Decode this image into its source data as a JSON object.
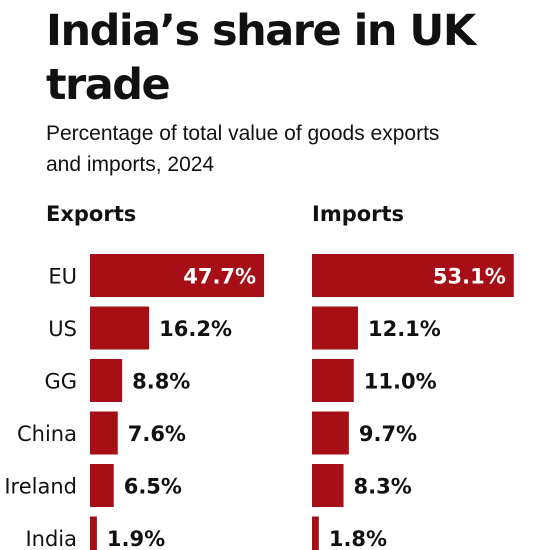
{
  "chart_data": {
    "type": "bar",
    "title": "India’s share in UK trade",
    "subtitle": "Percentage of total value of goods exports and imports, 2024",
    "categories": [
      "EU",
      "US",
      "GG",
      "China",
      "Ireland",
      "India"
    ],
    "series": [
      {
        "name": "Exports",
        "values": [
          47.7,
          16.2,
          8.8,
          7.6,
          6.5,
          1.9
        ],
        "labels": [
          "47.7%",
          "16.2%",
          "8.8%",
          "7.6%",
          "6.5%",
          "1.9%"
        ]
      },
      {
        "name": "Imports",
        "values": [
          53.1,
          12.1,
          11.0,
          9.7,
          8.3,
          1.8
        ],
        "labels": [
          "53.1%",
          "12.1%",
          "11.0%",
          "9.7%",
          "8.3%",
          "1.8%"
        ]
      }
    ],
    "value_unit": "%",
    "bar_color": "#a50f15",
    "inside_label_color": "#ffffff",
    "outside_label_color": "#111111"
  }
}
